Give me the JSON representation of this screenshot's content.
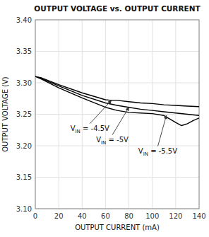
{
  "chart_data": {
    "type": "line",
    "title": "OUTPUT VOLTAGE vs. OUTPUT CURRENT",
    "xlabel": "OUTPUT CURRENT (mA)",
    "ylabel": "OUTPUT VOLTAGE (V)",
    "xlim": [
      0,
      140
    ],
    "ylim": [
      3.1,
      3.4
    ],
    "xticks": [
      0,
      20,
      40,
      60,
      80,
      100,
      120,
      140
    ],
    "yticks": [
      {
        "value": 3.1,
        "label": "3.10"
      },
      3.15,
      {
        "value": 3.2,
        "label": "3.20"
      },
      3.25,
      {
        "value": 3.3,
        "label": "3.30"
      },
      3.35,
      {
        "value": 3.4,
        "label": "3.40"
      }
    ],
    "grid": true,
    "series": [
      {
        "color": "#000000",
        "x": [
          0,
          5,
          20,
          40,
          60,
          65,
          70,
          80,
          90,
          100,
          110,
          120,
          130,
          140
        ],
        "values": [
          3.31,
          3.308,
          3.297,
          3.284,
          3.273,
          3.272,
          3.272,
          3.27,
          3.268,
          3.267,
          3.265,
          3.264,
          3.263,
          3.262
        ]
      },
      {
        "color": "#000000",
        "x": [
          0,
          5,
          20,
          40,
          60,
          70,
          80,
          90,
          100,
          110,
          120,
          130,
          140
        ],
        "values": [
          3.31,
          3.307,
          3.295,
          3.28,
          3.268,
          3.264,
          3.261,
          3.258,
          3.256,
          3.254,
          3.252,
          3.25,
          3.248
        ]
      },
      {
        "color": "#000000",
        "x": [
          0,
          5,
          20,
          40,
          60,
          70,
          80,
          90,
          100,
          110,
          120,
          125,
          130,
          135,
          140
        ],
        "values": [
          3.31,
          3.306,
          3.292,
          3.276,
          3.261,
          3.256,
          3.253,
          3.252,
          3.251,
          3.248,
          3.237,
          3.232,
          3.235,
          3.24,
          3.244
        ]
      }
    ],
    "annotations": [
      {
        "text": "VIN = -4.5V",
        "x": 65,
        "y": 3.272,
        "text_x": 30,
        "text_y": 3.228
      },
      {
        "text": "VIN = -5V",
        "x": 80,
        "y": 3.261,
        "text_x": 52,
        "text_y": 3.21
      },
      {
        "text": "VIN = -5.5V",
        "x": 112,
        "y": 3.248,
        "text_x": 88,
        "text_y": 3.192
      }
    ]
  }
}
